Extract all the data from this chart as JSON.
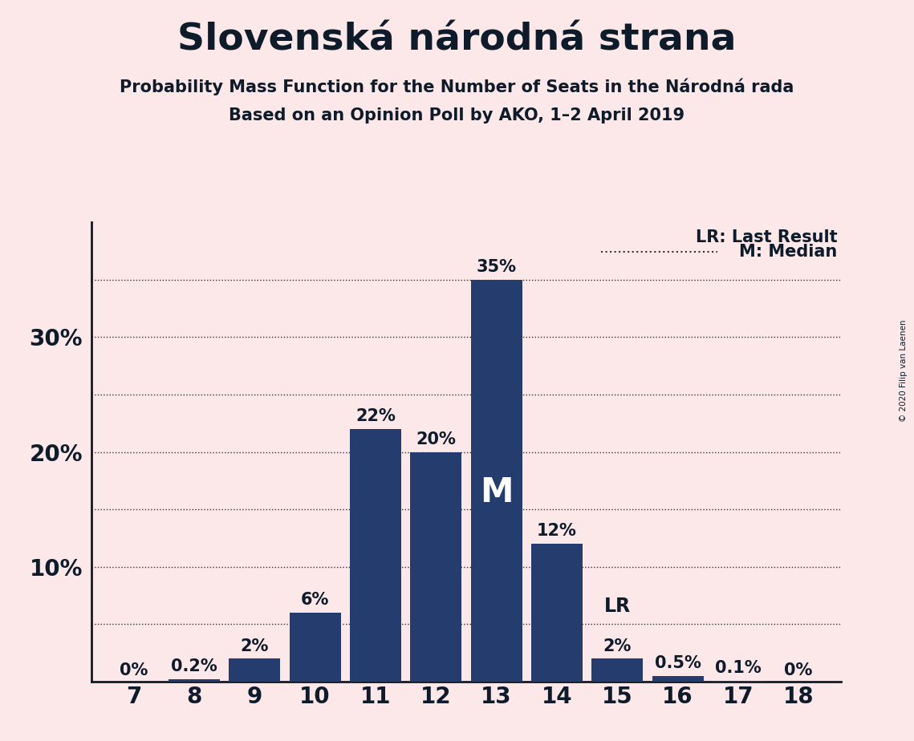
{
  "title": "Slovenská národná strana",
  "subtitle1": "Probability Mass Function for the Number of Seats in the Národná rada",
  "subtitle2": "Based on an Opinion Poll by AKO, 1–2 April 2019",
  "copyright": "© 2020 Filip van Laenen",
  "categories": [
    7,
    8,
    9,
    10,
    11,
    12,
    13,
    14,
    15,
    16,
    17,
    18
  ],
  "values": [
    0.0,
    0.2,
    2.0,
    6.0,
    22.0,
    20.0,
    35.0,
    12.0,
    2.0,
    0.5,
    0.1,
    0.0
  ],
  "labels": [
    "0%",
    "0.2%",
    "2%",
    "6%",
    "22%",
    "20%",
    "35%",
    "12%",
    "2%",
    "0.5%",
    "0.1%",
    "0%"
  ],
  "bar_color": "#243d6e",
  "background_color": "#fce8e8",
  "text_color": "#0d1b2a",
  "median_seat": 13,
  "lr_seat": 15,
  "ytick_labels": [
    10,
    20,
    30
  ],
  "ytick_dotted": [
    5,
    10,
    15,
    20,
    25,
    30,
    35
  ],
  "ylim": [
    0,
    40
  ],
  "figsize": [
    11.39,
    9.24
  ],
  "dpi": 100
}
